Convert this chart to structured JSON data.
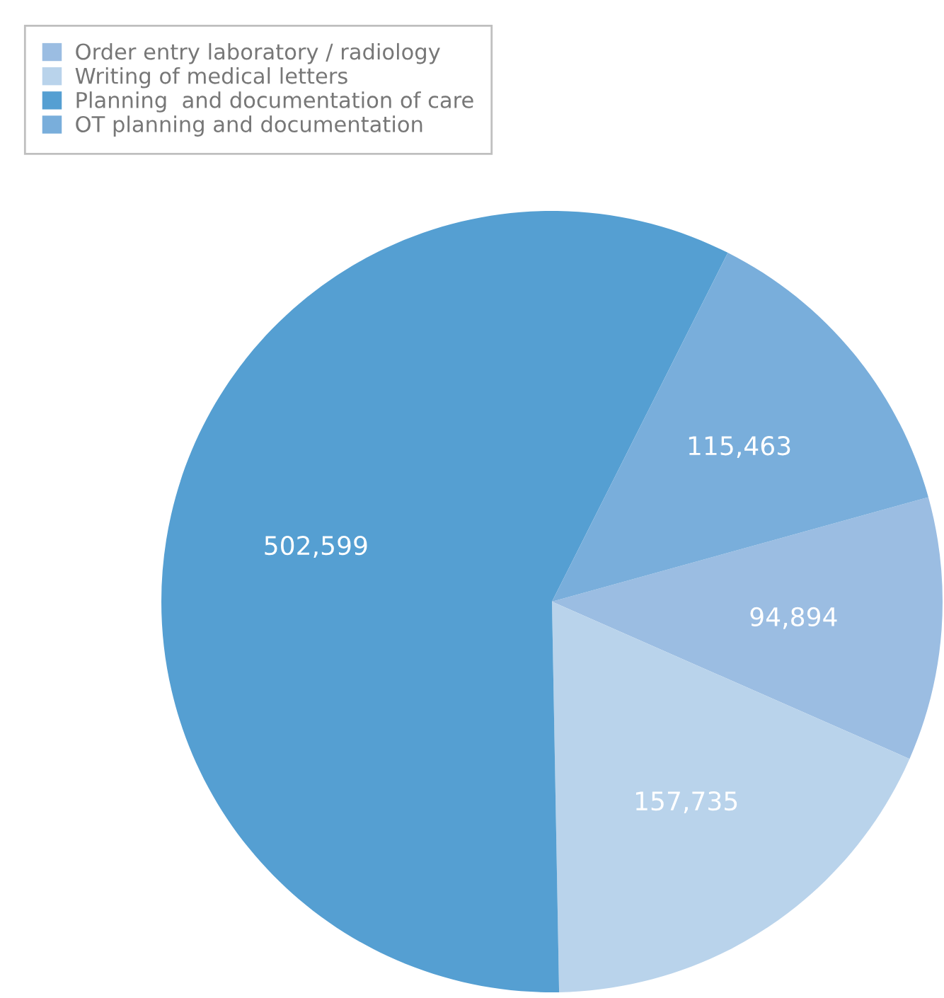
{
  "chart_data": {
    "type": "pie",
    "categories": [
      "Order entry laboratory / radiology",
      "Writing of medical letters",
      "Planning  and documentation of care",
      "OT planning and documentation"
    ],
    "values": [
      94894,
      157735,
      502599,
      115463
    ],
    "colors": [
      "#9bbde2",
      "#b9d3eb",
      "#559fd2",
      "#79aedb"
    ],
    "value_labels": [
      "94,894",
      "157,735",
      "502,599",
      "115,463"
    ],
    "legend": "top left"
  }
}
